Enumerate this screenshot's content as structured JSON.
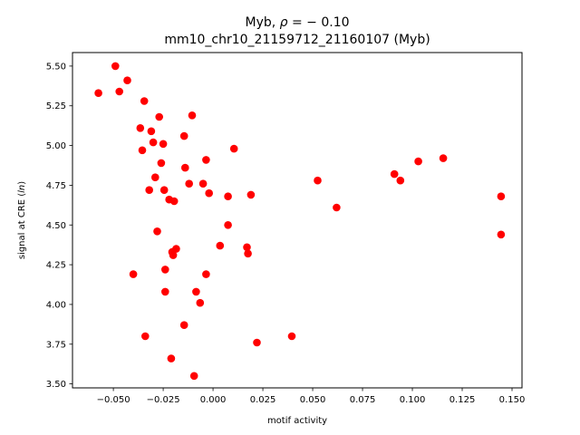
{
  "chart_data": {
    "type": "scatter",
    "title_line1": "Myb, ρ = − 0.10",
    "title_line2": "mm10_chr10_21159712_21160107 (Myb)",
    "xlabel": "motif activity",
    "ylabel": "signal at CRE (ln)",
    "xlim": [
      -0.0705,
      0.155
    ],
    "ylim": [
      3.475,
      5.585
    ],
    "xticks": [
      -0.05,
      -0.025,
      0.0,
      0.025,
      0.05,
      0.075,
      0.1,
      0.125,
      0.15
    ],
    "xtick_labels": [
      "−0.050",
      "−0.025",
      "0.000",
      "0.025",
      "0.050",
      "0.075",
      "0.100",
      "0.125",
      "0.150"
    ],
    "yticks": [
      3.5,
      3.75,
      4.0,
      4.25,
      4.5,
      4.75,
      5.0,
      5.25,
      5.5
    ],
    "ytick_labels": [
      "3.50",
      "3.75",
      "4.00",
      "4.25",
      "4.50",
      "4.75",
      "5.00",
      "5.25",
      "5.50"
    ],
    "grid": false,
    "marker_color": "#ff0000",
    "points": [
      {
        "x": -0.0575,
        "y": 5.33
      },
      {
        "x": -0.049,
        "y": 5.5
      },
      {
        "x": -0.047,
        "y": 5.34
      },
      {
        "x": -0.043,
        "y": 5.41
      },
      {
        "x": -0.04,
        "y": 4.19
      },
      {
        "x": -0.0365,
        "y": 5.11
      },
      {
        "x": -0.0355,
        "y": 4.97
      },
      {
        "x": -0.0345,
        "y": 5.28
      },
      {
        "x": -0.034,
        "y": 3.8
      },
      {
        "x": -0.032,
        "y": 4.72
      },
      {
        "x": -0.031,
        "y": 5.09
      },
      {
        "x": -0.03,
        "y": 5.02
      },
      {
        "x": -0.029,
        "y": 4.8
      },
      {
        "x": -0.028,
        "y": 4.46
      },
      {
        "x": -0.027,
        "y": 5.18
      },
      {
        "x": -0.026,
        "y": 4.89
      },
      {
        "x": -0.025,
        "y": 5.01
      },
      {
        "x": -0.0245,
        "y": 4.72
      },
      {
        "x": -0.024,
        "y": 4.22
      },
      {
        "x": -0.024,
        "y": 4.08
      },
      {
        "x": -0.022,
        "y": 4.66
      },
      {
        "x": -0.021,
        "y": 3.66
      },
      {
        "x": -0.0205,
        "y": 4.33
      },
      {
        "x": -0.02,
        "y": 4.31
      },
      {
        "x": -0.0195,
        "y": 4.65
      },
      {
        "x": -0.0185,
        "y": 4.35
      },
      {
        "x": -0.0145,
        "y": 5.06
      },
      {
        "x": -0.014,
        "y": 4.86
      },
      {
        "x": -0.0145,
        "y": 3.87
      },
      {
        "x": -0.012,
        "y": 4.76
      },
      {
        "x": -0.0105,
        "y": 5.19
      },
      {
        "x": -0.0095,
        "y": 3.55
      },
      {
        "x": -0.0085,
        "y": 4.08
      },
      {
        "x": -0.0065,
        "y": 4.01
      },
      {
        "x": -0.005,
        "y": 4.76
      },
      {
        "x": -0.0035,
        "y": 4.91
      },
      {
        "x": -0.0035,
        "y": 4.19
      },
      {
        "x": -0.002,
        "y": 4.7
      },
      {
        "x": 0.0035,
        "y": 4.37
      },
      {
        "x": 0.0075,
        "y": 4.68
      },
      {
        "x": 0.0075,
        "y": 4.5
      },
      {
        "x": 0.0105,
        "y": 4.98
      },
      {
        "x": 0.017,
        "y": 4.36
      },
      {
        "x": 0.0175,
        "y": 4.32
      },
      {
        "x": 0.019,
        "y": 4.69
      },
      {
        "x": 0.022,
        "y": 3.76
      },
      {
        "x": 0.0395,
        "y": 3.8
      },
      {
        "x": 0.0525,
        "y": 4.78
      },
      {
        "x": 0.062,
        "y": 4.61
      },
      {
        "x": 0.091,
        "y": 4.82
      },
      {
        "x": 0.094,
        "y": 4.78
      },
      {
        "x": 0.103,
        "y": 4.9
      },
      {
        "x": 0.1155,
        "y": 4.92
      },
      {
        "x": 0.1445,
        "y": 4.68
      },
      {
        "x": 0.1445,
        "y": 4.44
      }
    ]
  }
}
